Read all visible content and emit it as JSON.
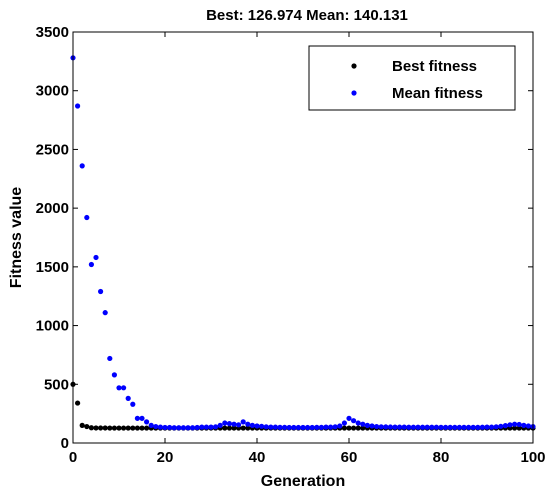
{
  "chart_data": {
    "type": "scatter",
    "title": "Best: 126.974 Mean: 140.131",
    "xlabel": "Generation",
    "ylabel": "Fitness value",
    "xlim": [
      0,
      100
    ],
    "ylim": [
      0,
      3500
    ],
    "xticks": [
      0,
      20,
      40,
      60,
      80,
      100
    ],
    "yticks": [
      0,
      500,
      1000,
      1500,
      2000,
      2500,
      3000,
      3500
    ],
    "grid": false,
    "legend": {
      "position": "top-right"
    },
    "series": [
      {
        "name": "Best fitness",
        "color": "#000000",
        "x": [
          0,
          1,
          2,
          3,
          4,
          5,
          6,
          7,
          8,
          9,
          10,
          11,
          12,
          13,
          14,
          15,
          16,
          17,
          18,
          19,
          20,
          21,
          22,
          23,
          24,
          25,
          26,
          27,
          28,
          29,
          30,
          31,
          32,
          33,
          34,
          35,
          36,
          37,
          38,
          39,
          40,
          41,
          42,
          43,
          44,
          45,
          46,
          47,
          48,
          49,
          50,
          51,
          52,
          53,
          54,
          55,
          56,
          57,
          58,
          59,
          60,
          61,
          62,
          63,
          64,
          65,
          66,
          67,
          68,
          69,
          70,
          71,
          72,
          73,
          74,
          75,
          76,
          77,
          78,
          79,
          80,
          81,
          82,
          83,
          84,
          85,
          86,
          87,
          88,
          89,
          90,
          91,
          92,
          93,
          94,
          95,
          96,
          97,
          98,
          99,
          100
        ],
        "y": [
          500,
          340,
          150,
          140,
          130,
          128,
          128,
          128,
          127,
          127,
          127,
          127,
          127,
          127,
          127,
          127,
          127,
          127,
          127,
          127,
          127,
          127,
          127,
          127,
          127,
          127,
          127,
          127,
          127,
          127,
          127,
          127,
          127,
          127,
          127,
          127,
          127,
          127,
          127,
          127,
          127,
          127,
          127,
          127,
          127,
          127,
          127,
          127,
          127,
          127,
          127,
          127,
          127,
          127,
          127,
          127,
          127,
          127,
          127,
          127,
          127,
          127,
          127,
          127,
          127,
          127,
          127,
          127,
          127,
          127,
          127,
          127,
          127,
          127,
          127,
          127,
          127,
          127,
          127,
          127,
          127,
          127,
          127,
          127,
          127,
          127,
          127,
          127,
          127,
          127,
          127,
          127,
          127,
          127,
          127,
          127,
          127,
          127,
          127,
          127,
          127
        ]
      },
      {
        "name": "Mean fitness",
        "color": "#0000ff",
        "x": [
          0,
          1,
          2,
          3,
          4,
          5,
          6,
          7,
          8,
          9,
          10,
          11,
          12,
          13,
          14,
          15,
          16,
          17,
          18,
          19,
          20,
          21,
          22,
          23,
          24,
          25,
          26,
          27,
          28,
          29,
          30,
          31,
          32,
          33,
          34,
          35,
          36,
          37,
          38,
          39,
          40,
          41,
          42,
          43,
          44,
          45,
          46,
          47,
          48,
          49,
          50,
          51,
          52,
          53,
          54,
          55,
          56,
          57,
          58,
          59,
          60,
          61,
          62,
          63,
          64,
          65,
          66,
          67,
          68,
          69,
          70,
          71,
          72,
          73,
          74,
          75,
          76,
          77,
          78,
          79,
          80,
          81,
          82,
          83,
          84,
          85,
          86,
          87,
          88,
          89,
          90,
          91,
          92,
          93,
          94,
          95,
          96,
          97,
          98,
          99,
          100
        ],
        "y": [
          3280,
          2870,
          2360,
          1920,
          1520,
          1580,
          1290,
          1110,
          720,
          580,
          470,
          470,
          380,
          330,
          210,
          210,
          180,
          150,
          140,
          135,
          132,
          132,
          130,
          130,
          130,
          130,
          130,
          132,
          135,
          135,
          135,
          138,
          150,
          170,
          165,
          160,
          155,
          180,
          160,
          150,
          145,
          142,
          138,
          135,
          135,
          133,
          133,
          132,
          132,
          132,
          132,
          132,
          132,
          133,
          133,
          135,
          135,
          138,
          145,
          170,
          210,
          190,
          170,
          160,
          150,
          145,
          140,
          138,
          137,
          136,
          135,
          135,
          135,
          134,
          134,
          134,
          134,
          134,
          134,
          134,
          133,
          133,
          133,
          133,
          133,
          133,
          133,
          133,
          133,
          134,
          135,
          135,
          138,
          142,
          148,
          155,
          160,
          158,
          150,
          145,
          140
        ]
      }
    ]
  }
}
